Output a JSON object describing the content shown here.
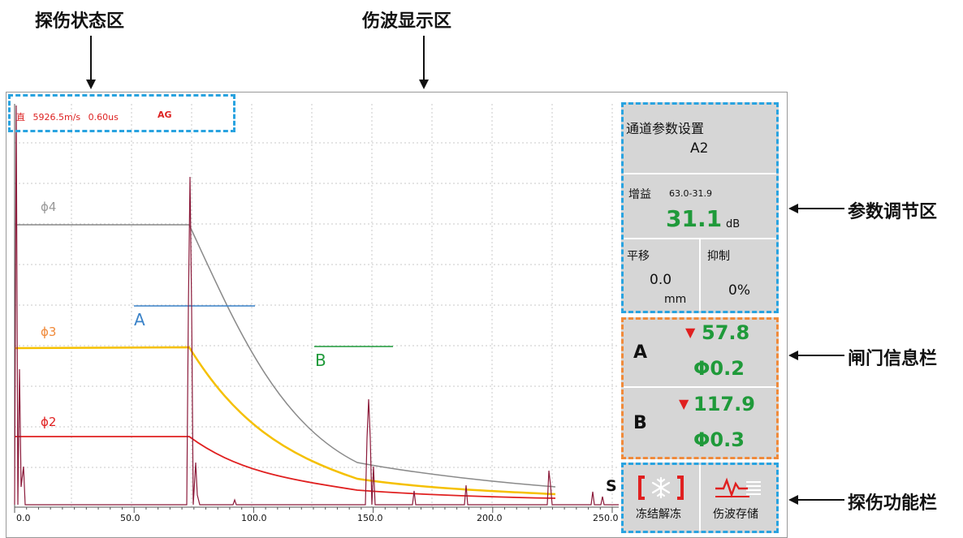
{
  "annotations": {
    "status_area": "探伤状态区",
    "wave_area": "伤波显示区",
    "param_area": "参数调节区",
    "gate_area": "闸门信息栏",
    "function_area": "探伤功能栏"
  },
  "status_bar": {
    "probe": "直",
    "velocity": "5926.5m/s",
    "delay": "0.60us",
    "mode": "AG"
  },
  "curves": {
    "phi4": "ϕ4",
    "phi3": "ϕ3",
    "phi2": "ϕ2",
    "gate_a": "A",
    "gate_b": "B",
    "s_marker": "S"
  },
  "x_axis": {
    "ticks": [
      "0.0",
      "50.0",
      "100.0",
      "150.0",
      "200.0",
      "250.0"
    ]
  },
  "param_panel": {
    "title": "通道参数设置",
    "channel": "A2",
    "gain_label": "增益",
    "gain_range": "63.0-31.9",
    "gain_value": "31.1",
    "gain_unit": "dB",
    "shift_label": "平移",
    "shift_value": "0.0",
    "shift_unit": "mm",
    "suppress_label": "抑制",
    "suppress_value": "0%"
  },
  "gate_panel": {
    "a_label": "A",
    "a_value": "57.8",
    "a_phi": "Φ0.2",
    "b_label": "B",
    "b_value": "117.9",
    "b_phi": "Φ0.3"
  },
  "function_panel": {
    "freeze_label": "冻结解冻",
    "save_label": "伤波存储"
  },
  "colors": {
    "phi4": "#8a8a8a",
    "phi3": "#f5c000",
    "phi2": "#e02020",
    "gate_a": "#3a82c8",
    "gate_b": "#1f9a3a",
    "echo": "#8b1a3a",
    "phi4_label": "#999999",
    "phi3_label": "#f08a3a"
  }
}
